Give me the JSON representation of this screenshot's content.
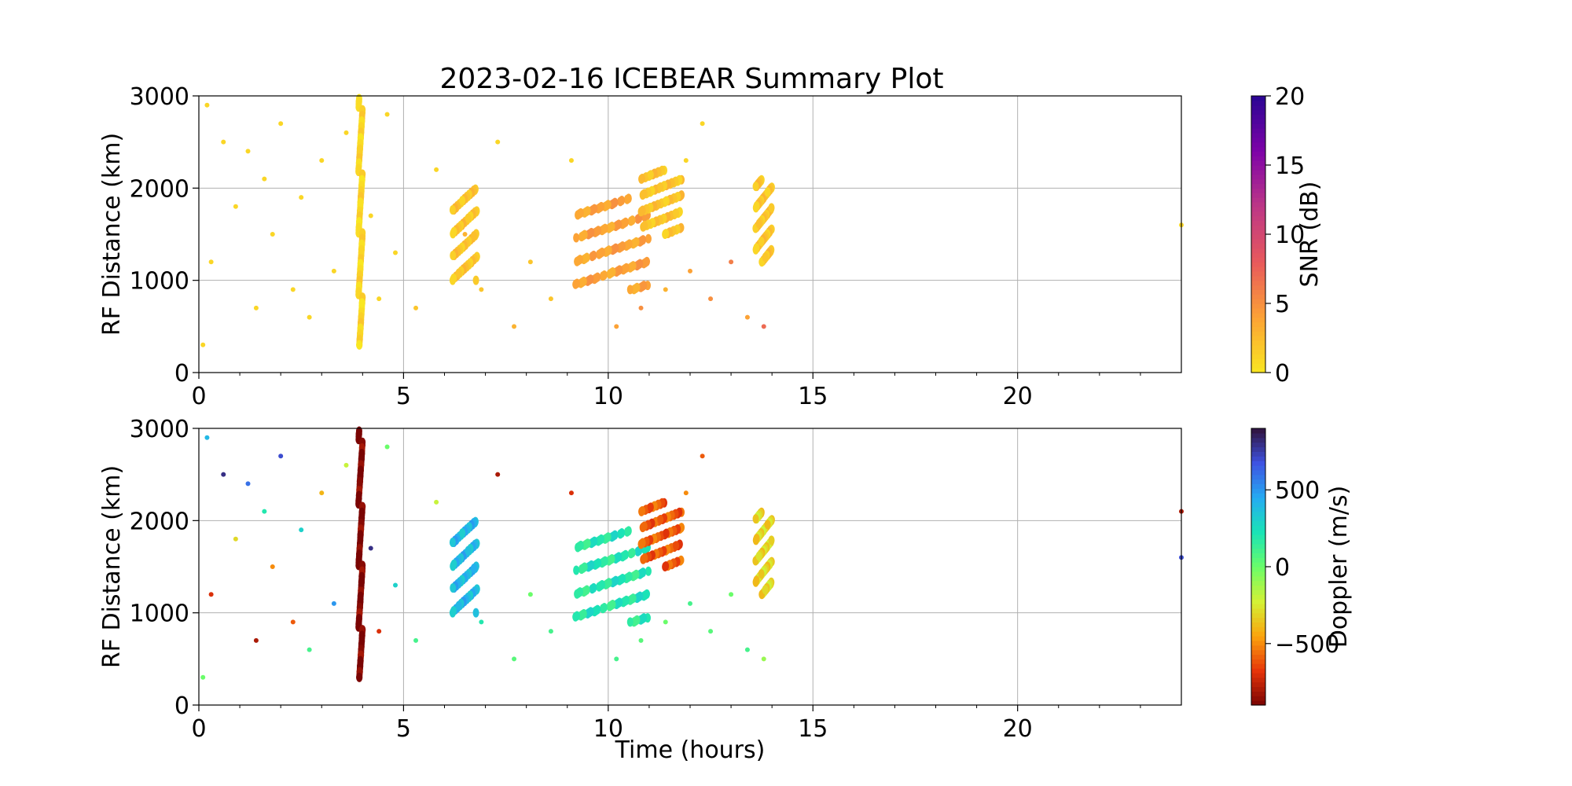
{
  "chart_data": [
    {
      "type": "scatter",
      "title": "2023-02-16 ICEBEAR Summary Plot",
      "xlabel": "",
      "ylabel": "RF Distance (km)",
      "xlim": [
        0,
        24
      ],
      "ylim": [
        0,
        3000
      ],
      "x_ticks": [
        "0",
        "5",
        "10",
        "15",
        "20"
      ],
      "y_ticks": [
        "0",
        "1000",
        "2000",
        "3000"
      ],
      "grid": true,
      "color_variable": "SNR",
      "colorbar": {
        "label": "SNR (dB)",
        "range": [
          0,
          20
        ],
        "ticks": [
          "0",
          "5",
          "10",
          "15",
          "20"
        ],
        "colormap": [
          "#f9e721",
          "#fca236",
          "#e8595c",
          "#bd3786",
          "#7e03a8",
          "#2a0593"
        ]
      },
      "scatter_points_sparse": "hours 0-5 sparse echoes at 0-3000 km, ~1-2 dB",
      "points": [
        [
          0.1,
          300,
          1
        ],
        [
          0.2,
          2900,
          1
        ],
        [
          0.3,
          1200,
          1
        ],
        [
          0.6,
          2500,
          1
        ],
        [
          0.9,
          1800,
          1
        ],
        [
          1.2,
          2400,
          1
        ],
        [
          1.4,
          700,
          1
        ],
        [
          1.6,
          2100,
          1
        ],
        [
          1.8,
          1500,
          1
        ],
        [
          2.0,
          2700,
          1
        ],
        [
          2.3,
          900,
          1
        ],
        [
          2.5,
          1900,
          1
        ],
        [
          2.7,
          600,
          1
        ],
        [
          3.0,
          2300,
          1
        ],
        [
          3.3,
          1100,
          1
        ],
        [
          3.6,
          2600,
          1
        ],
        [
          4.2,
          1700,
          1
        ],
        [
          4.4,
          800,
          1
        ],
        [
          4.6,
          2800,
          1
        ],
        [
          4.8,
          1300,
          1
        ],
        [
          5.3,
          700,
          2
        ],
        [
          5.8,
          2200,
          1
        ],
        [
          6.5,
          1500,
          3
        ],
        [
          6.9,
          900,
          2
        ],
        [
          7.3,
          2500,
          1
        ],
        [
          7.7,
          500,
          3
        ],
        [
          8.1,
          1200,
          2
        ],
        [
          8.6,
          800,
          2
        ],
        [
          9.1,
          2300,
          1
        ],
        [
          10.2,
          500,
          4
        ],
        [
          10.8,
          700,
          5
        ],
        [
          11.4,
          900,
          3
        ],
        [
          12.0,
          1100,
          4
        ],
        [
          12.5,
          800,
          5
        ],
        [
          13.0,
          1200,
          6
        ],
        [
          13.4,
          600,
          4
        ],
        [
          13.8,
          500,
          7
        ],
        [
          12.3,
          2700,
          1
        ],
        [
          11.9,
          2300,
          1
        ],
        [
          24.0,
          1600,
          1
        ]
      ],
      "clusters": [
        {
          "x": [
            6.2,
            6.8
          ],
          "y": [
            1000,
            2000
          ],
          "snr": 2
        },
        {
          "x": [
            9.2,
            11.0
          ],
          "y": [
            900,
            1900
          ],
          "snr": 4
        },
        {
          "x": [
            10.8,
            11.8
          ],
          "y": [
            1500,
            2200
          ],
          "snr": 2
        },
        {
          "x": [
            13.6,
            14.0
          ],
          "y": [
            1200,
            2100
          ],
          "snr": 2
        },
        {
          "x": [
            3.9,
            4.0
          ],
          "y": [
            300,
            3000
          ],
          "snr": 1
        }
      ]
    },
    {
      "type": "scatter",
      "title": "",
      "xlabel": "Time (hours)",
      "ylabel": "RF Distance (km)",
      "xlim": [
        0,
        24
      ],
      "ylim": [
        0,
        3000
      ],
      "x_ticks": [
        "0",
        "5",
        "10",
        "15",
        "20"
      ],
      "y_ticks": [
        "0",
        "1000",
        "2000",
        "3000"
      ],
      "grid": true,
      "color_variable": "Doppler",
      "colorbar": {
        "label": "Doppler (m/s)",
        "range": [
          -900,
          900
        ],
        "ticks": [
          "−500",
          "0",
          "500"
        ],
        "tick_values": [
          -500,
          0,
          500
        ],
        "colormap": [
          "#7a0403",
          "#e6350a",
          "#fba40d",
          "#d3f235",
          "#6afd6a",
          "#1ae4b6",
          "#25abf2",
          "#3e53e2",
          "#30123b"
        ]
      },
      "points": [
        [
          0.1,
          300,
          0
        ],
        [
          0.2,
          2900,
          400
        ],
        [
          0.3,
          1200,
          -700
        ],
        [
          0.6,
          2500,
          800
        ],
        [
          0.9,
          1800,
          -300
        ],
        [
          1.2,
          2400,
          600
        ],
        [
          1.4,
          700,
          -800
        ],
        [
          1.6,
          2100,
          200
        ],
        [
          1.8,
          1500,
          -500
        ],
        [
          2.0,
          2700,
          700
        ],
        [
          2.3,
          900,
          -600
        ],
        [
          2.5,
          1900,
          300
        ],
        [
          2.7,
          600,
          100
        ],
        [
          3.0,
          2300,
          -400
        ],
        [
          3.3,
          1100,
          500
        ],
        [
          3.6,
          2600,
          -200
        ],
        [
          4.2,
          1700,
          800
        ],
        [
          4.4,
          800,
          -700
        ],
        [
          4.6,
          2800,
          0
        ],
        [
          4.8,
          1300,
          300
        ],
        [
          5.3,
          700,
          100
        ],
        [
          5.8,
          2200,
          -200
        ],
        [
          6.9,
          900,
          200
        ],
        [
          7.3,
          2500,
          -800
        ],
        [
          7.7,
          500,
          50
        ],
        [
          8.1,
          1200,
          0
        ],
        [
          8.6,
          800,
          100
        ],
        [
          9.1,
          2300,
          -700
        ],
        [
          10.2,
          500,
          100
        ],
        [
          10.8,
          700,
          50
        ],
        [
          11.4,
          900,
          0
        ],
        [
          12.0,
          1100,
          100
        ],
        [
          12.5,
          800,
          50
        ],
        [
          13.0,
          1200,
          0
        ],
        [
          13.4,
          600,
          100
        ],
        [
          13.8,
          500,
          -100
        ],
        [
          12.3,
          2700,
          -600
        ],
        [
          11.9,
          2300,
          -500
        ],
        [
          24.0,
          1600,
          700
        ],
        [
          24.0,
          2100,
          -800
        ]
      ],
      "clusters": [
        {
          "x": [
            6.2,
            6.8
          ],
          "y": [
            1000,
            2000
          ],
          "doppler": 400
        },
        {
          "x": [
            9.2,
            11.0
          ],
          "y": [
            900,
            1900
          ],
          "doppler": 200
        },
        {
          "x": [
            10.8,
            11.8
          ],
          "y": [
            1500,
            2200
          ],
          "doppler": -600
        },
        {
          "x": [
            13.6,
            14.0
          ],
          "y": [
            1200,
            2100
          ],
          "doppler": -300
        },
        {
          "x": [
            3.9,
            4.0
          ],
          "y": [
            300,
            3000
          ],
          "doppler": -900
        }
      ]
    }
  ]
}
